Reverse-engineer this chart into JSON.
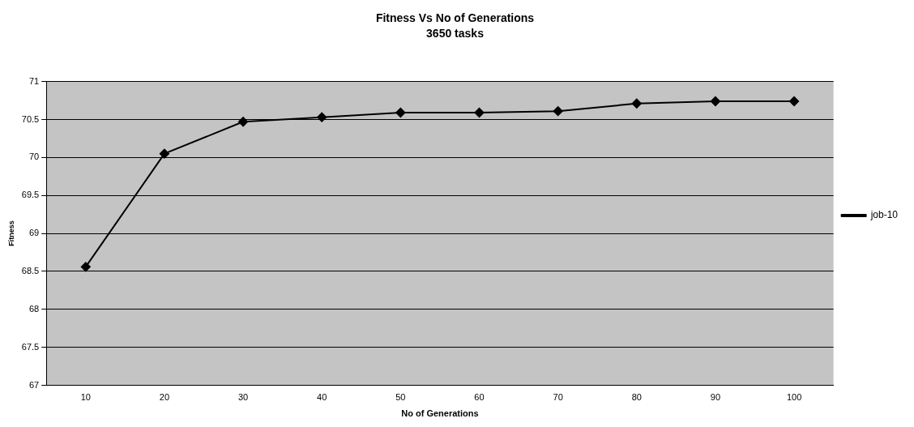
{
  "chart_data": {
    "type": "line",
    "title": "Fitness Vs No of Generations",
    "subtitle": "3650 tasks",
    "xlabel": "No of Generations",
    "ylabel": "Fitness",
    "categories": [
      "10",
      "20",
      "30",
      "40",
      "50",
      "60",
      "70",
      "80",
      "90",
      "100"
    ],
    "series": [
      {
        "name": "job-10",
        "color": "#000000",
        "values": [
          68.56,
          70.05,
          70.47,
          70.53,
          70.59,
          70.59,
          70.61,
          70.71,
          70.74,
          70.74
        ]
      }
    ],
    "ylim": [
      67,
      71
    ],
    "yticks": [
      67,
      67.5,
      68,
      68.5,
      69,
      69.5,
      70,
      70.5,
      71
    ],
    "grid": "y",
    "legend": "right",
    "marker": "diamond",
    "line_style": "solid"
  }
}
